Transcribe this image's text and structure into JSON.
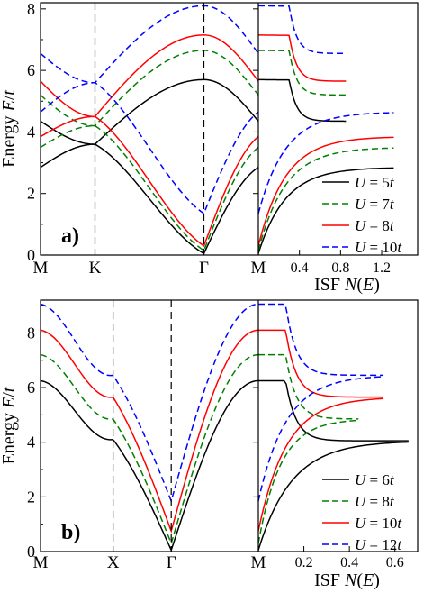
{
  "chart_data": [
    {
      "panel_label": "a)",
      "type": "line",
      "band_structure": {
        "ylabel": "Energy E/t",
        "ylim": [
          0,
          8.2
        ],
        "yticks": [
          "0",
          "2",
          "4",
          "6",
          "8"
        ],
        "xticks": [
          "M",
          "K",
          "Γ",
          "M"
        ],
        "k_path": [
          0,
          0.25,
          0.75,
          1.0
        ],
        "dashed_verticals_at": [
          0.25,
          0.75
        ],
        "series": [
          {
            "name": "U = 5t",
            "color": "#000000",
            "dash": "solid",
            "lower": {
              "x": [
                0,
                0.25,
                0.75,
                1.0
              ],
              "y": [
                2.85,
                3.6,
                0.05,
                2.85
              ]
            },
            "upper": {
              "x": [
                0,
                0.25,
                0.75,
                1.0
              ],
              "y": [
                4.35,
                3.6,
                5.7,
                4.35
              ]
            }
          },
          {
            "name": "U = 7t",
            "color": "#008000",
            "dash": "dashed",
            "lower": {
              "x": [
                0,
                0.25,
                0.75,
                1.0
              ],
              "y": [
                3.5,
                4.2,
                0.15,
                3.5
              ]
            },
            "upper": {
              "x": [
                0,
                0.25,
                0.75,
                1.0
              ],
              "y": [
                5.2,
                4.2,
                6.65,
                5.2
              ]
            }
          },
          {
            "name": "U = 8t",
            "color": "#ff0000",
            "dash": "solid",
            "lower": {
              "x": [
                0,
                0.25,
                0.75,
                1.0
              ],
              "y": [
                3.85,
                4.5,
                0.3,
                3.85
              ]
            },
            "upper": {
              "x": [
                0,
                0.25,
                0.75,
                1.0
              ],
              "y": [
                5.65,
                4.5,
                7.15,
                5.65
              ]
            }
          },
          {
            "name": "U = 10t",
            "color": "#0000ff",
            "dash": "dashed",
            "lower": {
              "x": [
                0,
                0.25,
                0.75,
                1.0
              ],
              "y": [
                4.65,
                5.6,
                1.35,
                4.65
              ]
            },
            "upper": {
              "x": [
                0,
                0.25,
                0.75,
                1.0
              ],
              "y": [
                6.55,
                5.6,
                8.1,
                6.55
              ]
            }
          }
        ]
      },
      "isf": {
        "xlabel": "ISF N(E)",
        "xlim": [
          0,
          1.55
        ],
        "xticks": [
          "0.4",
          "0.8",
          "1.2"
        ],
        "xtick_values": [
          0.4,
          0.8,
          1.2
        ],
        "series": [
          {
            "name": "U = 5t",
            "Emin": 0.05,
            "Ecross": 3.6,
            "Emax": 5.7,
            "Elow": 2.85,
            "Ehigh": 4.35,
            "peak": 1.2,
            "xend": 1.55,
            "color": "#000000",
            "dash": "solid"
          },
          {
            "name": "U = 7t",
            "Emin": 0.15,
            "Ecross": 4.2,
            "Emax": 6.65,
            "Elow": 3.5,
            "Ehigh": 5.2,
            "peak": 1.3,
            "xend": 1.55,
            "color": "#008000",
            "dash": "dashed"
          },
          {
            "name": "U = 8t",
            "Emin": 0.3,
            "Ecross": 4.5,
            "Emax": 7.15,
            "Elow": 3.85,
            "Ehigh": 5.65,
            "peak": 1.3,
            "xend": 1.55,
            "color": "#ff0000",
            "dash": "solid"
          },
          {
            "name": "U = 10t",
            "Emin": 1.35,
            "Ecross": 5.6,
            "Emax": 8.1,
            "Elow": 4.65,
            "Ehigh": 6.55,
            "peak": 1.05,
            "xend": 1.55,
            "color": "#0000ff",
            "dash": "dashed"
          }
        ]
      },
      "legend": [
        "U = 5t",
        "U = 7t",
        "U = 8t",
        "U = 10t"
      ],
      "legend_placement": "bottom-right"
    },
    {
      "panel_label": "b)",
      "type": "line",
      "band_structure": {
        "ylabel": "Energy E/t",
        "ylim": [
          0,
          9.2
        ],
        "yticks": [
          "0",
          "2",
          "4",
          "6",
          "8"
        ],
        "xticks": [
          "M",
          "X",
          "Γ",
          "M"
        ],
        "k_path": [
          0,
          0.333,
          0.6,
          1.0
        ],
        "dashed_verticals_at": [
          0.333,
          0.6
        ],
        "series": [
          {
            "name": "U = 6t",
            "color": "#000000",
            "dash": "solid",
            "atM": 6.25,
            "atX": 4.1,
            "atG": 0.05
          },
          {
            "name": "U = 8t",
            "color": "#008000",
            "dash": "dashed",
            "atM": 7.2,
            "atX": 4.85,
            "atG": 0.3
          },
          {
            "name": "U = 10t",
            "color": "#ff0000",
            "dash": "solid",
            "atM": 8.1,
            "atX": 5.65,
            "atG": 0.75
          },
          {
            "name": "U = 12t",
            "color": "#0000ff",
            "dash": "dashed",
            "atM": 9.05,
            "atX": 6.45,
            "atG": 1.85
          }
        ]
      },
      "isf": {
        "xlabel": "ISF N(E)",
        "xlim": [
          0,
          0.7
        ],
        "xticks": [
          "0.2",
          "0.4",
          "0.6"
        ],
        "xtick_values": [
          0.2,
          0.4,
          0.6
        ],
        "series": [
          {
            "name": "U = 6t",
            "Emin": 0.05,
            "Emax": 6.25,
            "Eplat": 4.05,
            "peak": 0.6,
            "xend": 0.66,
            "color": "#000000",
            "dash": "solid"
          },
          {
            "name": "U = 8t",
            "Emin": 0.3,
            "Emax": 7.2,
            "Eplat": 4.85,
            "peak": 0.55,
            "xend": 0.44,
            "color": "#008000",
            "dash": "dashed"
          },
          {
            "name": "U = 10t",
            "Emin": 0.75,
            "Emax": 8.1,
            "Eplat": 5.65,
            "peak": 0.52,
            "xend": 0.55,
            "color": "#ff0000",
            "dash": "solid"
          },
          {
            "name": "U = 12t",
            "Emin": 1.85,
            "Emax": 9.05,
            "Eplat": 6.45,
            "peak": 0.5,
            "xend": 0.55,
            "color": "#0000ff",
            "dash": "dashed"
          }
        ]
      },
      "legend": [
        "U = 6t",
        "U = 8t",
        "U = 10t",
        "U = 12t"
      ],
      "legend_placement": "bottom-right"
    }
  ]
}
